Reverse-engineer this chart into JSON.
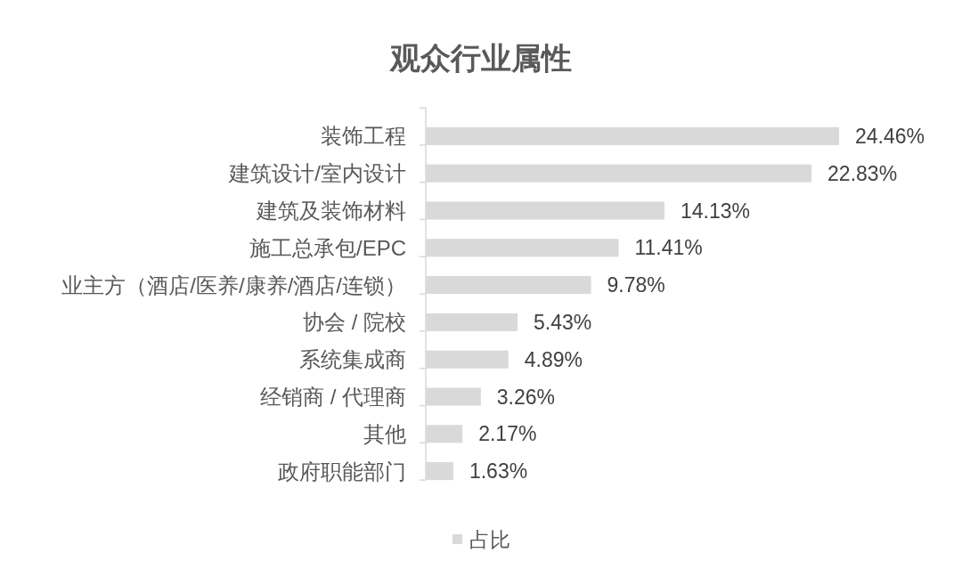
{
  "chart_data": {
    "type": "bar",
    "title": "观众行业属性",
    "orientation": "horizontal",
    "categories": [
      "装饰工程",
      "建筑设计/室内设计",
      "建筑及装饰材料",
      "施工总承包/EPC",
      "业主方（酒店/医养/康养/酒店/连锁）",
      "协会 / 院校",
      "系统集成商",
      "经销商 / 代理商",
      "其他",
      "政府职能部门"
    ],
    "series": [
      {
        "name": "占比",
        "color": "#d9d9d9",
        "values": [
          24.46,
          22.83,
          14.13,
          11.41,
          9.78,
          5.43,
          4.89,
          3.26,
          2.17,
          1.63
        ],
        "value_labels": [
          "24.46%",
          "22.83%",
          "14.13%",
          "11.41%",
          "9.78%",
          "5.43%",
          "4.89%",
          "3.26%",
          "2.17%",
          "1.63%"
        ]
      }
    ],
    "legend": "bottom",
    "tick_labels": "y"
  }
}
